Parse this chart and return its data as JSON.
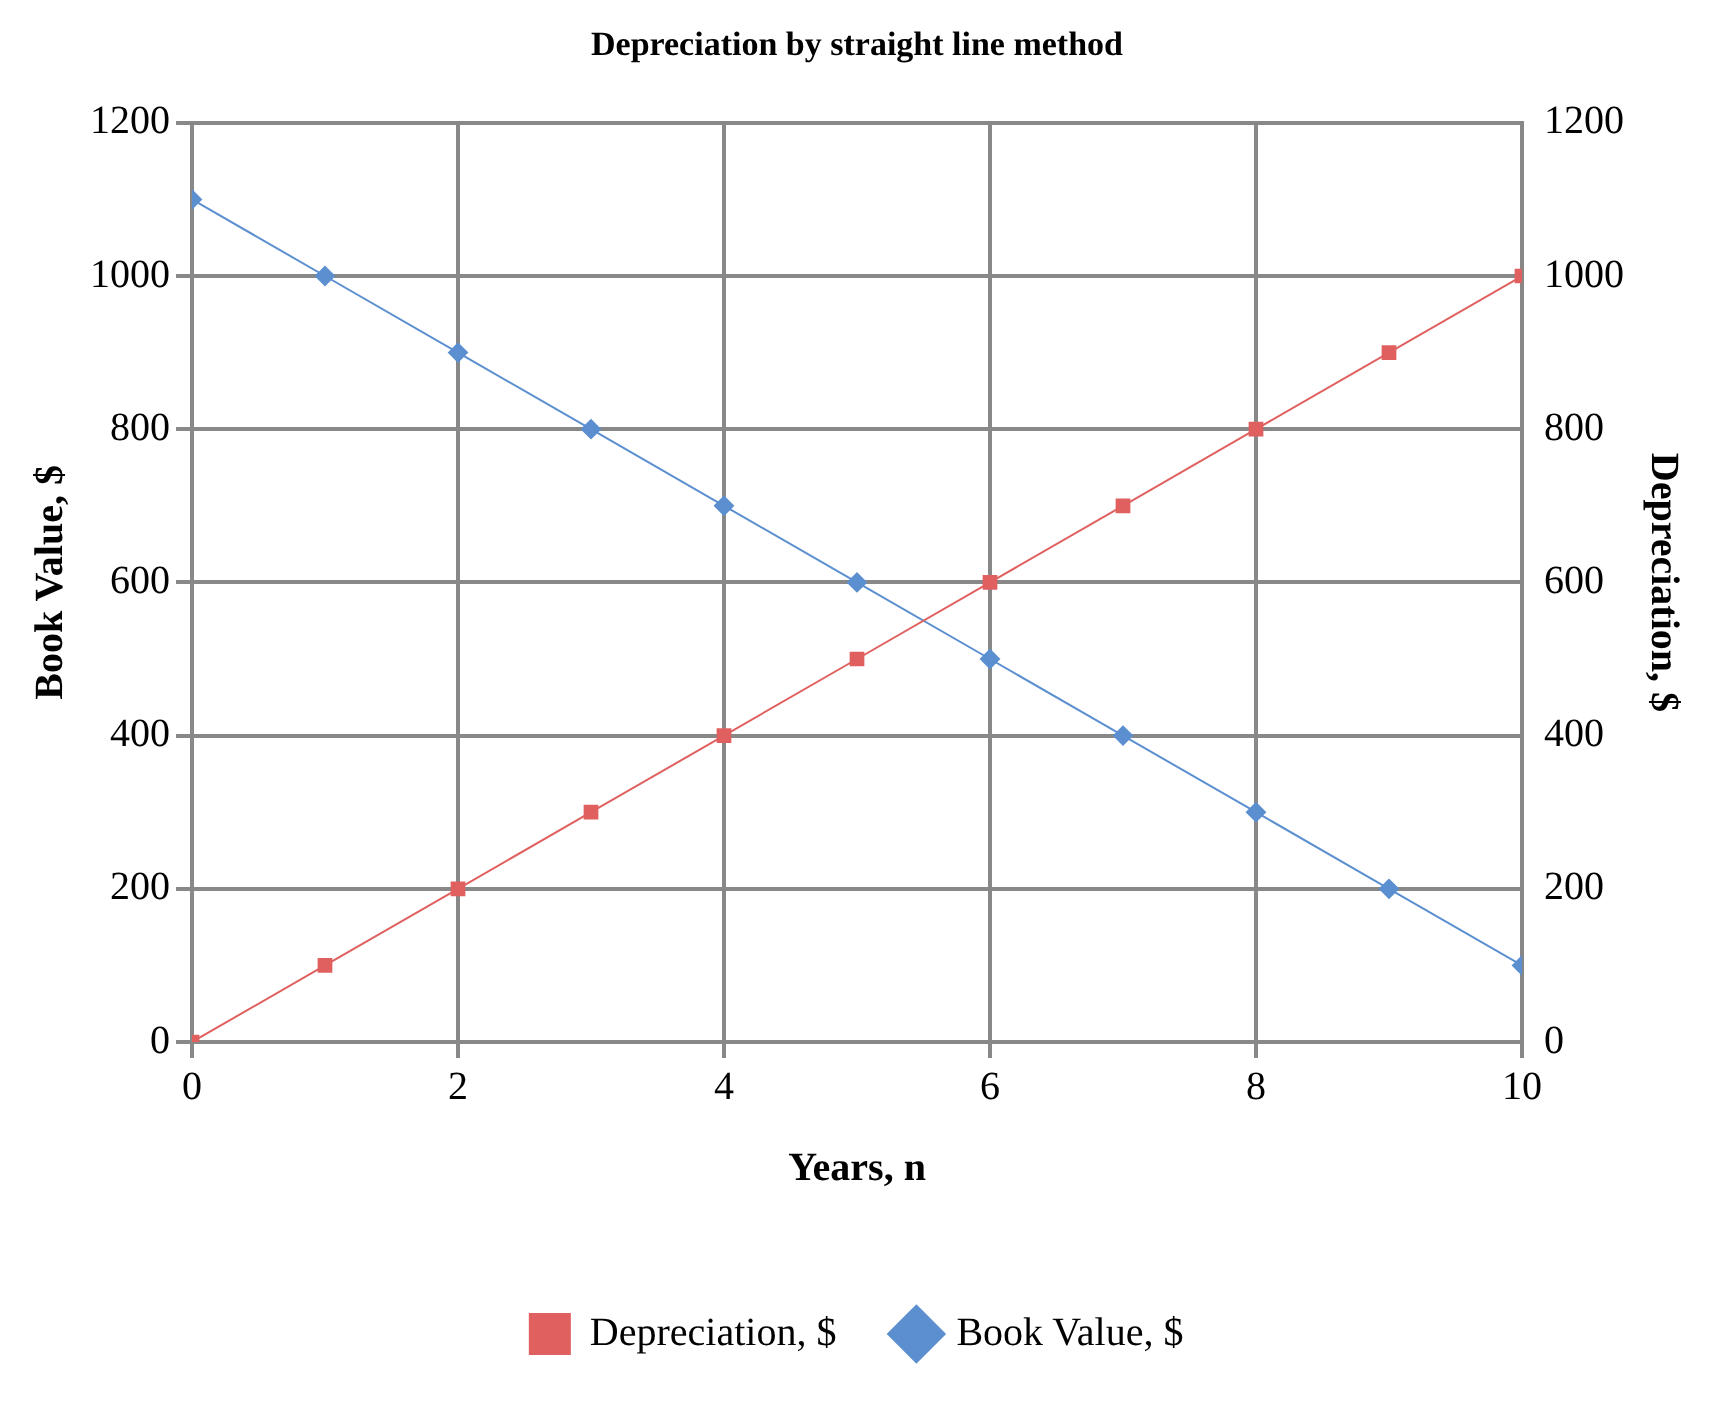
{
  "chart_data": {
    "type": "line",
    "title": "Depreciation by straight line method",
    "xlabel": "Years, n",
    "ylabel": "Book Value, $",
    "y2label": "Depreciation, $",
    "x": [
      0,
      1,
      2,
      3,
      4,
      5,
      6,
      7,
      8,
      9,
      10
    ],
    "series": [
      {
        "name": "Depreciation, $",
        "color": "#e06060",
        "axis": "y2",
        "marker": "square",
        "values": [
          0,
          100,
          200,
          300,
          400,
          500,
          600,
          700,
          800,
          900,
          1000
        ]
      },
      {
        "name": "Book Value, $",
        "color": "#5b8fd0",
        "marker": "diamond",
        "values": [
          1100,
          1000,
          900,
          800,
          700,
          600,
          500,
          400,
          300,
          200,
          100
        ]
      }
    ],
    "xlim": [
      0,
      10
    ],
    "xticks": [
      0,
      2,
      4,
      6,
      8,
      10
    ],
    "ylim": [
      0,
      1200
    ],
    "yticks": [
      0,
      200,
      400,
      600,
      800,
      1000,
      1200
    ],
    "y2lim": [
      0,
      1200
    ],
    "y2ticks": [
      0,
      200,
      400,
      600,
      800,
      1000,
      1200
    ],
    "grid": true,
    "legend": "bottom",
    "line_style": "solid"
  }
}
